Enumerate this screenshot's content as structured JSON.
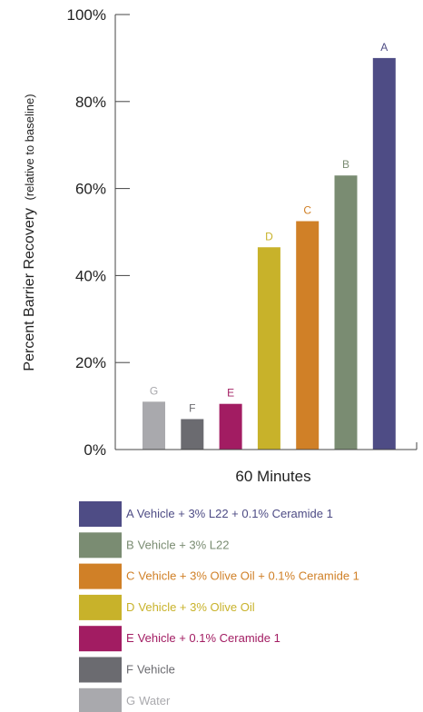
{
  "chart_data": {
    "type": "bar",
    "xlabel": "60 Minutes",
    "ylabel_main": "Percent Barrier Recovery",
    "ylabel_sub": "(relative to baseline)",
    "ylim": [
      0,
      100
    ],
    "yticks": [
      {
        "value": 0,
        "label": "0%"
      },
      {
        "value": 20,
        "label": "20%"
      },
      {
        "value": 40,
        "label": "40%"
      },
      {
        "value": 60,
        "label": "60%"
      },
      {
        "value": 80,
        "label": "80%"
      },
      {
        "value": 100,
        "label": "100%"
      }
    ],
    "grid": false,
    "legend_position": "bottom",
    "bars": [
      {
        "letter": "G",
        "value": 11,
        "color": "#a9a9ad"
      },
      {
        "letter": "F",
        "value": 7,
        "color": "#6b6b70"
      },
      {
        "letter": "E",
        "value": 10.5,
        "color": "#a21c62"
      },
      {
        "letter": "D",
        "value": 46.5,
        "color": "#c8b22a"
      },
      {
        "letter": "C",
        "value": 52.5,
        "color": "#d08027"
      },
      {
        "letter": "B",
        "value": 63,
        "color": "#7a8c72"
      },
      {
        "letter": "A",
        "value": 90,
        "color": "#4e4c85"
      }
    ],
    "legend": [
      {
        "letter": "A",
        "text": "Vehicle + 3% L22 + 0.1% Ceramide 1",
        "color": "#4e4c85"
      },
      {
        "letter": "B",
        "text": "Vehicle + 3% L22",
        "color": "#7a8c72"
      },
      {
        "letter": "C",
        "text": "Vehicle + 3% Olive Oil + 0.1% Ceramide 1",
        "color": "#d08027"
      },
      {
        "letter": "D",
        "text": "Vehicle + 3% Olive Oil",
        "color": "#c8b22a"
      },
      {
        "letter": "E",
        "text": "Vehicle + 0.1% Ceramide 1",
        "color": "#a21c62"
      },
      {
        "letter": "F",
        "text": "Vehicle",
        "color": "#6b6b70"
      },
      {
        "letter": "G",
        "text": "Water",
        "color": "#a9a9ad"
      }
    ]
  }
}
